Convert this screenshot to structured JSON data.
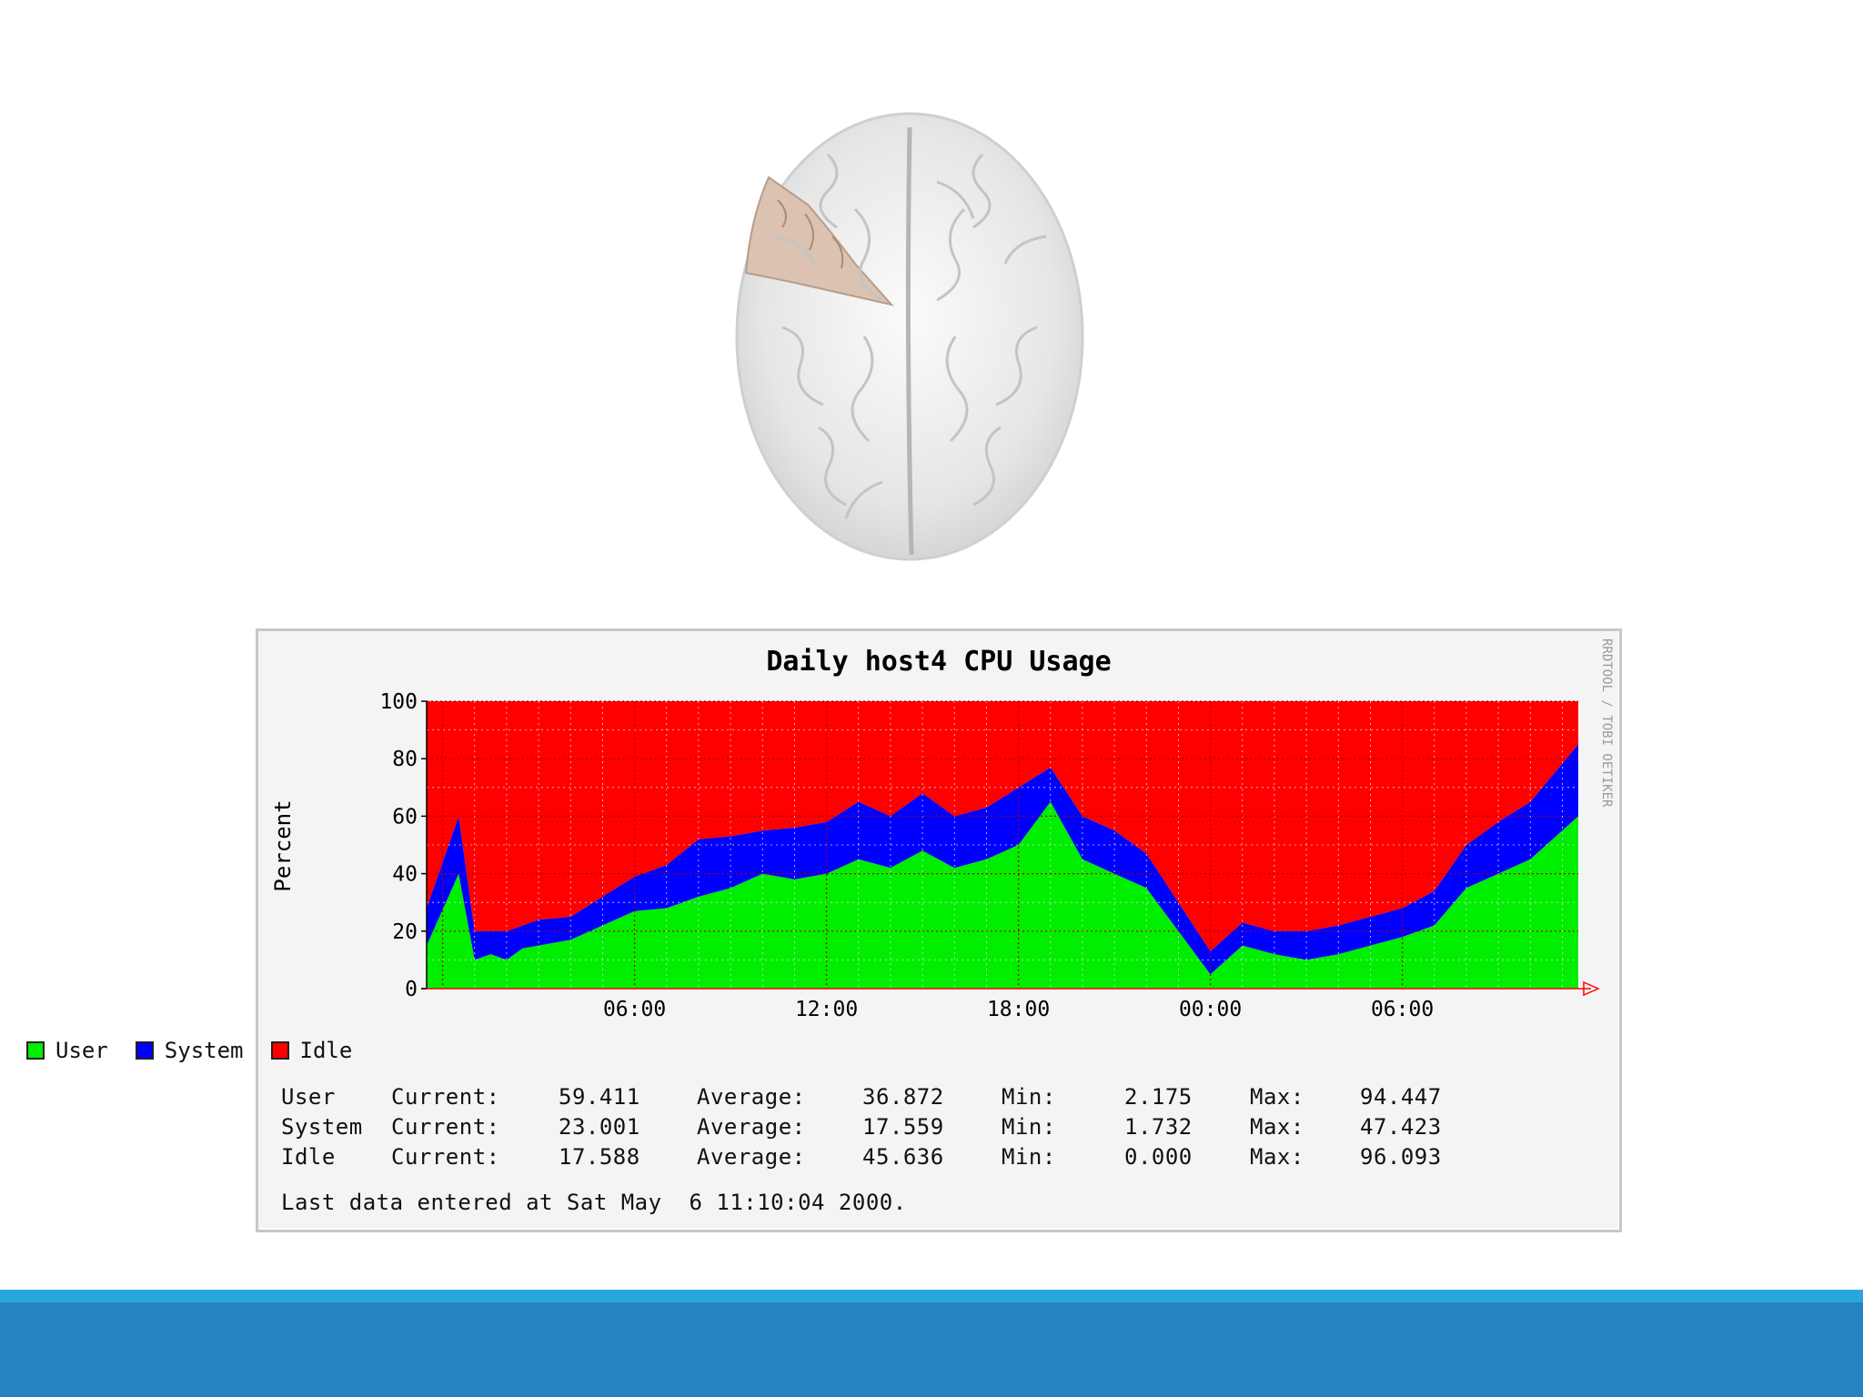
{
  "chart_data": {
    "type": "area",
    "title": "Daily host4 CPU Usage",
    "ylabel": "Percent",
    "xlabel": "",
    "watermark": "RRDTOOL / TOBI OETIKER",
    "ylim": [
      0,
      100
    ],
    "yticks": [
      "0",
      "20",
      "40",
      "60",
      "80",
      "100"
    ],
    "xtick_labels": [
      "06:00",
      "12:00",
      "18:00",
      "00:00",
      "06:00"
    ],
    "stacked": true,
    "grid": true,
    "legend_position": "bottom-left",
    "x_hours": [
      -0.5,
      0.5,
      1.0,
      1.5,
      2.0,
      2.5,
      3,
      4,
      5,
      6,
      7,
      8,
      9,
      10,
      11,
      12,
      13,
      14,
      15,
      16,
      17,
      18,
      19,
      20,
      21,
      22,
      23,
      24,
      25,
      26,
      27,
      28,
      29,
      30,
      31,
      32,
      33,
      34,
      35.5
    ],
    "series": [
      {
        "name": "User",
        "color": "#00ee00",
        "values": [
          15,
          40,
          10,
          12,
          10,
          14,
          15,
          17,
          22,
          27,
          28,
          32,
          35,
          40,
          38,
          40,
          45,
          42,
          48,
          42,
          45,
          50,
          65,
          45,
          40,
          35,
          20,
          5,
          15,
          12,
          10,
          12,
          15,
          18,
          22,
          35,
          40,
          45,
          60
        ]
      },
      {
        "name": "System",
        "color": "#0000ff",
        "values": [
          13,
          20,
          10,
          8,
          10,
          8,
          9,
          8,
          10,
          12,
          15,
          20,
          18,
          15,
          18,
          18,
          20,
          18,
          20,
          18,
          18,
          20,
          12,
          15,
          15,
          12,
          10,
          8,
          8,
          8,
          10,
          10,
          10,
          10,
          12,
          15,
          18,
          20,
          25
        ]
      },
      {
        "name": "Idle",
        "color": "#ff0000",
        "values": [
          72,
          40,
          80,
          80,
          80,
          78,
          76,
          75,
          68,
          61,
          57,
          48,
          47,
          45,
          44,
          42,
          35,
          40,
          32,
          40,
          37,
          30,
          23,
          40,
          45,
          53,
          70,
          87,
          77,
          80,
          80,
          78,
          75,
          72,
          66,
          50,
          42,
          35,
          15
        ]
      }
    ],
    "stats": {
      "headers": {
        "current": "Current:",
        "average": "Average:",
        "min": "Min:",
        "max": "Max:"
      },
      "rows": [
        {
          "name": "User",
          "current": "59.411",
          "average": "36.872",
          "min": "2.175",
          "max": "94.447"
        },
        {
          "name": "System",
          "current": "23.001",
          "average": "17.559",
          "min": "1.732",
          "max": "47.423"
        },
        {
          "name": "Idle",
          "current": "17.588",
          "average": "45.636",
          "min": "0.000",
          "max": "96.093"
        }
      ]
    },
    "last_update": "Last data entered at Sat May  6 11:10:04 2000."
  }
}
